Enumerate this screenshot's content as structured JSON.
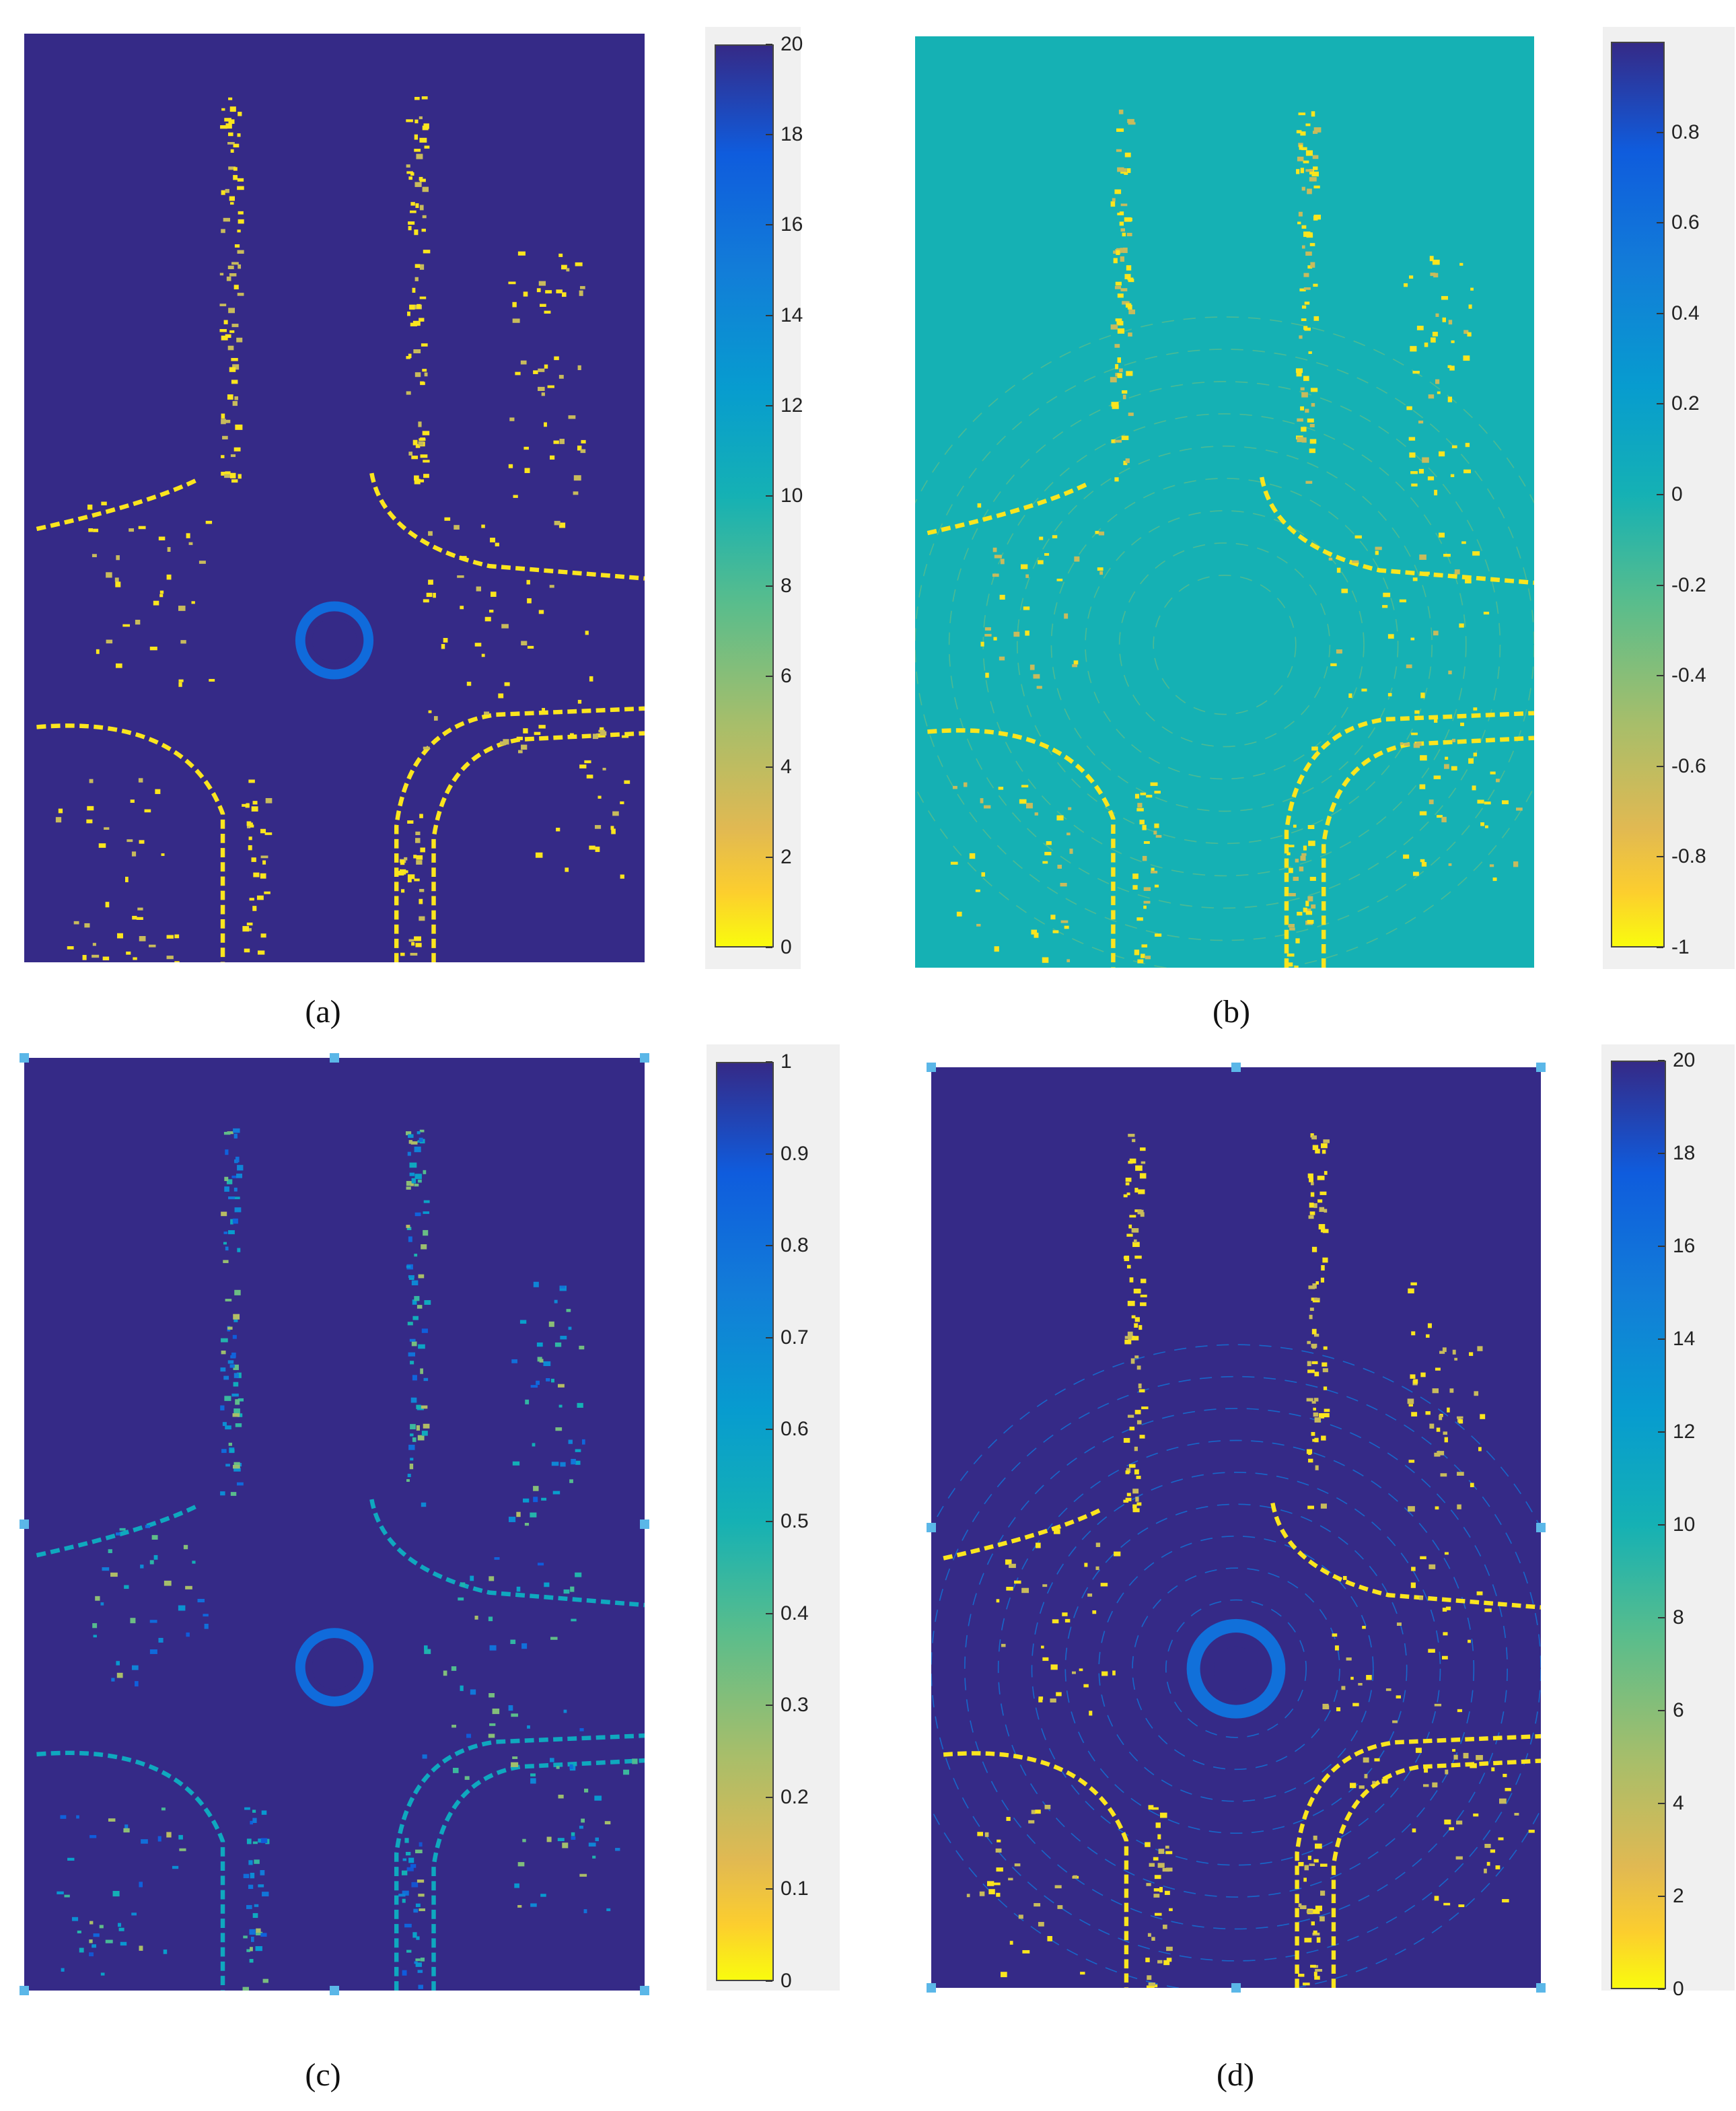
{
  "chart_data": [
    {
      "type": "heatmap",
      "panel": "(a)",
      "caption": "(a)",
      "colormap": "parula",
      "clim": [
        0,
        20
      ],
      "colorbar_ticks": [
        0,
        2,
        4,
        6,
        8,
        10,
        12,
        14,
        16,
        18,
        20
      ],
      "colorbar_tick_labels": [
        "0",
        "2",
        "4",
        "6",
        "8",
        "10",
        "12",
        "14",
        "16",
        "18",
        "20"
      ],
      "background_value": 0,
      "selection_handles": false
    },
    {
      "type": "heatmap",
      "panel": "(b)",
      "caption": "(b)",
      "colormap": "parula",
      "clim": [
        -1,
        1
      ],
      "colorbar_ticks": [
        -1,
        -0.8,
        -0.6,
        -0.4,
        -0.2,
        0,
        0.2,
        0.4,
        0.6,
        0.8
      ],
      "colorbar_tick_labels": [
        "-1",
        "-0.8",
        "-0.6",
        "-0.4",
        "-0.2",
        "0",
        "0.2",
        "0.4",
        "0.6",
        "0.8"
      ],
      "background_value": 0,
      "selection_handles": false
    },
    {
      "type": "heatmap",
      "panel": "(c)",
      "caption": "(c)",
      "colormap": "parula",
      "clim": [
        0,
        1
      ],
      "colorbar_ticks": [
        0,
        0.1,
        0.2,
        0.3,
        0.4,
        0.5,
        0.6,
        0.7,
        0.8,
        0.9,
        1
      ],
      "colorbar_tick_labels": [
        "0",
        "0.1",
        "0.2",
        "0.3",
        "0.4",
        "0.5",
        "0.6",
        "0.7",
        "0.8",
        "0.9",
        "1"
      ],
      "background_value": 0,
      "selection_handles": true
    },
    {
      "type": "heatmap",
      "panel": "(d)",
      "caption": "(d)",
      "colormap": "parula",
      "clim": [
        0,
        20
      ],
      "colorbar_ticks": [
        0,
        2,
        4,
        6,
        8,
        10,
        12,
        14,
        16,
        18,
        20
      ],
      "colorbar_tick_labels": [
        "0",
        "2",
        "4",
        "6",
        "8",
        "10",
        "12",
        "14",
        "16",
        "18",
        "20"
      ],
      "background_value": 0,
      "selection_handles": true
    }
  ],
  "colors": {
    "low": "#352a87",
    "mid": "#21b39f",
    "high": "#f9fb0e"
  }
}
